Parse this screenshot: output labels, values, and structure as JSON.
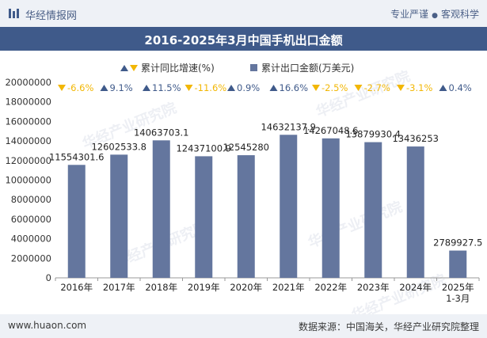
{
  "header": {
    "brand": "华经情报网",
    "tag1": "专业严谨",
    "tag2": "客观科学"
  },
  "title": "2016-2025年3月中国手机出口金额",
  "footer": {
    "site": "www.huaon.com",
    "source": "数据来源：中国海关，华经产业研究院整理"
  },
  "watermark": "华经产业研究院",
  "colors": {
    "bar": "#64769e",
    "up_arrow": "#3f5a8a",
    "down_arrow": "#f2b705",
    "up_text": "#3f5a8a",
    "down_text": "#f2b705"
  },
  "chart_data": {
    "type": "bar",
    "categories": [
      "2016年",
      "2017年",
      "2018年",
      "2019年",
      "2020年",
      "2021年",
      "2022年",
      "2023年",
      "2024年",
      "2025年 1-3月"
    ],
    "series": [
      {
        "name": "累计出口金额(万美元)",
        "values": [
          11554301.6,
          12602533.8,
          14063703.1,
          12437100.9,
          12545280,
          14632137.9,
          14267048.6,
          13879930.4,
          13436253,
          2789927.5
        ],
        "labels": [
          "11554301.6",
          "12602533.8",
          "14063703.1",
          "12437100.9",
          "12545280",
          "14632137.9",
          "14267048.6",
          "13879930.4",
          "13436253",
          "2789927.5"
        ]
      },
      {
        "name": "累计同比增速(%)",
        "values": [
          -6.6,
          9.1,
          11.5,
          -11.6,
          0.9,
          16.6,
          -2.5,
          -2.7,
          -3.1,
          0.4
        ],
        "labels": [
          "-6.6%",
          "9.1%",
          "11.5%",
          "-11.6%",
          "0.9%",
          "16.6%",
          "-2.5%",
          "-2.7%",
          "-3.1%",
          "0.4%"
        ]
      }
    ],
    "yticks": [
      "0",
      "2000000",
      "4000000",
      "6000000",
      "8000000",
      "10000000",
      "12000000",
      "14000000",
      "16000000",
      "18000000",
      "20000000"
    ],
    "ylim": [
      0,
      20000000
    ],
    "legend_position": "top-center"
  }
}
